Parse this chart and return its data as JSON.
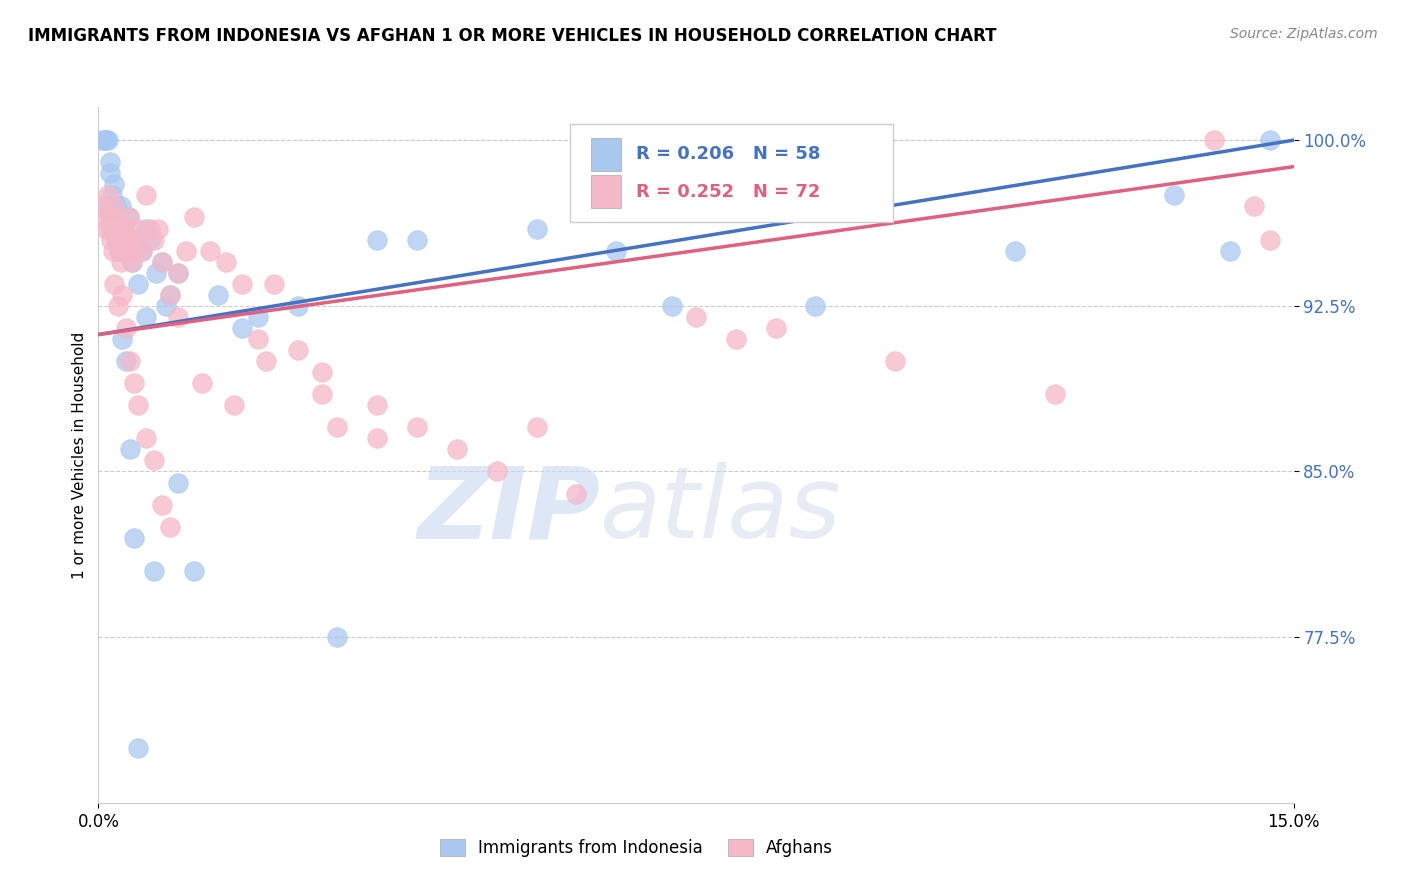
{
  "title": "IMMIGRANTS FROM INDONESIA VS AFGHAN 1 OR MORE VEHICLES IN HOUSEHOLD CORRELATION CHART",
  "source": "Source: ZipAtlas.com",
  "ylabel": "1 or more Vehicles in Household",
  "yticks": [
    77.5,
    85.0,
    92.5,
    100.0
  ],
  "ytick_labels": [
    "77.5%",
    "85.0%",
    "92.5%",
    "100.0%"
  ],
  "xmin": 0.0,
  "xmax": 15.0,
  "ymin": 70.0,
  "ymax": 101.5,
  "blue_color": "#A8C8F0",
  "pink_color": "#F5B8C8",
  "blue_line_color": "#4472C4",
  "pink_line_color": "#E06080",
  "legend_R_blue": "R = 0.206",
  "legend_N_blue": "N = 58",
  "legend_R_pink": "R = 0.252",
  "legend_N_pink": "N = 72",
  "legend_label_blue": "Immigrants from Indonesia",
  "legend_label_pink": "Afghans",
  "watermark_zip": "ZIP",
  "watermark_atlas": "atlas",
  "blue_trend_x": [
    0.0,
    15.0
  ],
  "blue_trend_y": [
    91.2,
    100.0
  ],
  "pink_trend_x": [
    0.0,
    15.0
  ],
  "pink_trend_y": [
    91.2,
    98.8
  ],
  "blue_x": [
    0.05,
    0.08,
    0.1,
    0.12,
    0.12,
    0.14,
    0.15,
    0.15,
    0.17,
    0.18,
    0.2,
    0.2,
    0.22,
    0.22,
    0.24,
    0.25,
    0.26,
    0.28,
    0.3,
    0.32,
    0.35,
    0.38,
    0.4,
    0.42,
    0.45,
    0.5,
    0.55,
    0.6,
    0.65,
    0.72,
    0.8,
    0.9,
    1.0,
    1.2,
    1.5,
    1.8,
    2.0,
    2.5,
    3.0,
    3.5,
    4.0,
    5.5,
    6.5,
    7.2,
    9.0,
    11.5,
    13.5,
    14.2,
    14.7,
    0.3,
    0.35,
    0.4,
    0.45,
    0.5,
    0.6,
    0.7,
    0.85,
    1.0
  ],
  "blue_y": [
    100.0,
    100.0,
    100.0,
    100.0,
    97.0,
    99.0,
    98.5,
    96.5,
    97.5,
    96.0,
    98.0,
    96.5,
    97.0,
    95.5,
    96.0,
    96.5,
    95.0,
    97.0,
    95.5,
    96.0,
    95.0,
    96.5,
    95.5,
    94.5,
    95.5,
    93.5,
    95.0,
    96.0,
    95.5,
    94.0,
    94.5,
    93.0,
    84.5,
    80.5,
    93.0,
    91.5,
    92.0,
    92.5,
    77.5,
    95.5,
    95.5,
    96.0,
    95.0,
    92.5,
    92.5,
    95.0,
    97.5,
    95.0,
    100.0,
    91.0,
    90.0,
    86.0,
    82.0,
    72.5,
    92.0,
    80.5,
    92.5,
    94.0
  ],
  "pink_x": [
    0.05,
    0.08,
    0.1,
    0.12,
    0.14,
    0.15,
    0.16,
    0.18,
    0.2,
    0.22,
    0.24,
    0.25,
    0.27,
    0.28,
    0.3,
    0.32,
    0.35,
    0.38,
    0.4,
    0.42,
    0.45,
    0.48,
    0.5,
    0.55,
    0.6,
    0.65,
    0.7,
    0.75,
    0.8,
    0.9,
    1.0,
    1.1,
    1.2,
    1.4,
    1.6,
    1.8,
    2.0,
    2.2,
    2.5,
    2.8,
    3.0,
    3.5,
    4.0,
    4.5,
    5.0,
    6.0,
    7.5,
    8.5,
    10.0,
    12.0,
    14.0,
    14.7,
    0.2,
    0.25,
    0.3,
    0.35,
    0.4,
    0.45,
    0.5,
    0.6,
    0.7,
    0.8,
    0.9,
    1.0,
    1.3,
    1.7,
    2.1,
    2.8,
    3.5,
    5.5,
    8.0,
    14.5
  ],
  "pink_y": [
    97.0,
    96.5,
    96.0,
    97.5,
    96.5,
    96.0,
    95.5,
    95.0,
    97.0,
    96.0,
    95.5,
    96.5,
    95.0,
    94.5,
    96.0,
    95.5,
    95.0,
    96.5,
    95.5,
    94.5,
    95.0,
    96.0,
    95.5,
    95.0,
    97.5,
    96.0,
    95.5,
    96.0,
    94.5,
    93.0,
    94.0,
    95.0,
    96.5,
    95.0,
    94.5,
    93.5,
    91.0,
    93.5,
    90.5,
    88.5,
    87.0,
    86.5,
    87.0,
    86.0,
    85.0,
    84.0,
    92.0,
    91.5,
    90.0,
    88.5,
    100.0,
    95.5,
    93.5,
    92.5,
    93.0,
    91.5,
    90.0,
    89.0,
    88.0,
    86.5,
    85.5,
    83.5,
    82.5,
    92.0,
    89.0,
    88.0,
    90.0,
    89.5,
    88.0,
    87.0,
    91.0,
    97.0
  ]
}
